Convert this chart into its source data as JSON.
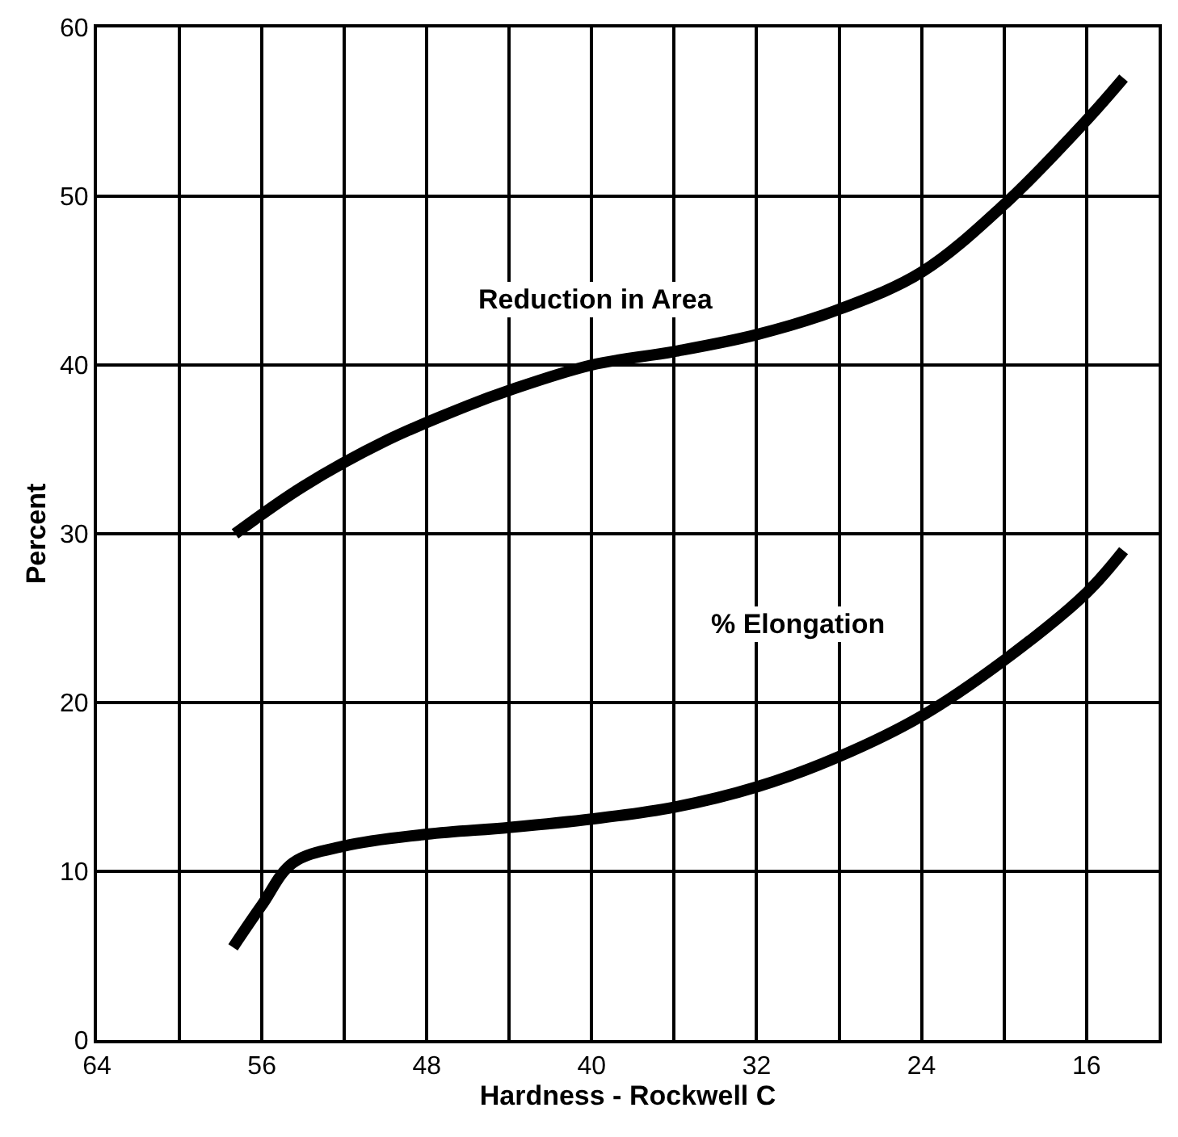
{
  "chart_data": {
    "type": "line",
    "xlabel": "Hardness - Rockwell C",
    "ylabel": "Percent",
    "xlim": [
      64,
      12.5
    ],
    "ylim": [
      0,
      60
    ],
    "xticks": [
      64,
      {
        "value": 60,
        "label": null
      },
      56,
      {
        "value": 52,
        "label": null
      },
      48,
      {
        "value": 44,
        "label": null
      },
      40,
      {
        "value": 36,
        "label": null
      },
      32,
      {
        "value": 28,
        "label": null
      },
      24,
      {
        "value": 20,
        "label": null
      },
      16
    ],
    "yticks": [
      0,
      10,
      20,
      30,
      40,
      50,
      60
    ],
    "grid": true,
    "legend": false,
    "marker": "none",
    "line_style": "solid",
    "series": [
      {
        "color": "#000000",
        "x": [
          57.3,
          54,
          50,
          46,
          44,
          40,
          36,
          32,
          28,
          24,
          20,
          16,
          14.2
        ],
        "values": [
          30,
          32.8,
          35.5,
          37.6,
          38.5,
          40,
          40.8,
          41.8,
          43.3,
          45.5,
          49.5,
          54.5,
          57
        ]
      },
      {
        "color": "#000000",
        "x": [
          57.4,
          56,
          54.5,
          52,
          48,
          44,
          40,
          36,
          32,
          28,
          24,
          20,
          16,
          14.2
        ],
        "values": [
          5.5,
          8,
          10.5,
          11.5,
          12.2,
          12.6,
          13.1,
          13.8,
          15,
          16.8,
          19.2,
          22.5,
          26.5,
          29
        ]
      }
    ],
    "annotations": [
      "Reduction in Area",
      "% Elongation"
    ]
  }
}
